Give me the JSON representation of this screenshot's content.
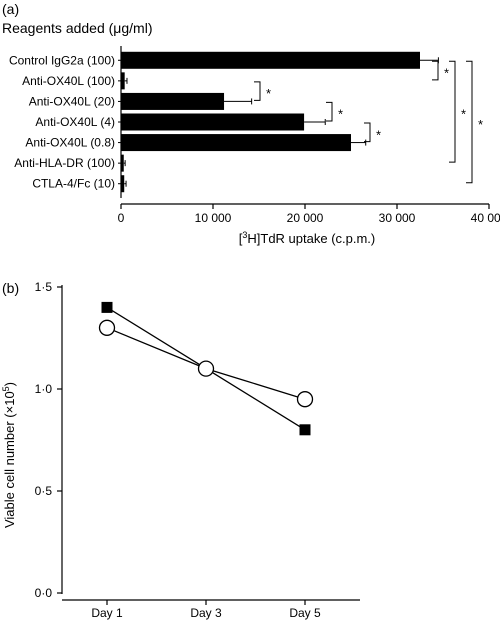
{
  "chart_data": [
    {
      "type": "bar",
      "orientation": "horizontal",
      "panel_label": "(a)",
      "title": "Reagents added (μg/ml)",
      "xlabel": "[3H]TdR uptake (c.p.m.)",
      "xlabel_parts": {
        "pre": "[",
        "sup": "3",
        "post": "H]TdR uptake (c.p.m.)"
      },
      "xlim": [
        0,
        40000
      ],
      "xticks": [
        0,
        10000,
        20000,
        30000,
        40000
      ],
      "xtick_labels": [
        "0",
        "10 000",
        "20 000",
        "30 000",
        "40 000"
      ],
      "categories": [
        "Control IgG2a (100)",
        "Anti-OX40L (100)",
        "Anti-OX40L (20)",
        "Anti-OX40L (4)",
        "Anti-OX40L (0.8)",
        "Anti-HLA-DR (100)",
        "CTLA-4/Fc (10)"
      ],
      "values": [
        32500,
        400,
        11200,
        19900,
        25000,
        300,
        350
      ],
      "errors": [
        2000,
        250,
        3000,
        2300,
        1600,
        150,
        200
      ],
      "bar_color": "#000000",
      "significance": [
        {
          "from": 0,
          "to": 1,
          "label": "*"
        },
        {
          "from": 1,
          "to": 2,
          "label": "*"
        },
        {
          "from": 2,
          "to": 3,
          "label": "*"
        },
        {
          "from": 3,
          "to": 4,
          "label": "*"
        },
        {
          "from": 0,
          "to": 5,
          "label": "*"
        },
        {
          "from": 0,
          "to": 6,
          "label": "*"
        }
      ]
    },
    {
      "type": "line",
      "panel_label": "(b)",
      "ylabel": "Viable cell number (×10⁵)",
      "ylabel_parts": {
        "pre": "Viable cell number (×10",
        "sup": "5",
        "post": ")"
      },
      "categories": [
        "Day 1",
        "Day 3",
        "Day 5"
      ],
      "ylim": [
        0,
        1.5
      ],
      "yticks": [
        0,
        0.5,
        1.0,
        1.5
      ],
      "ytick_labels": [
        "0·0",
        "0·5",
        "1·0",
        "1·5"
      ],
      "series": [
        {
          "marker": "filled-square",
          "values": [
            1.4,
            1.1,
            0.8
          ]
        },
        {
          "marker": "open-circle",
          "values": [
            1.3,
            1.1,
            0.95
          ]
        }
      ]
    }
  ]
}
